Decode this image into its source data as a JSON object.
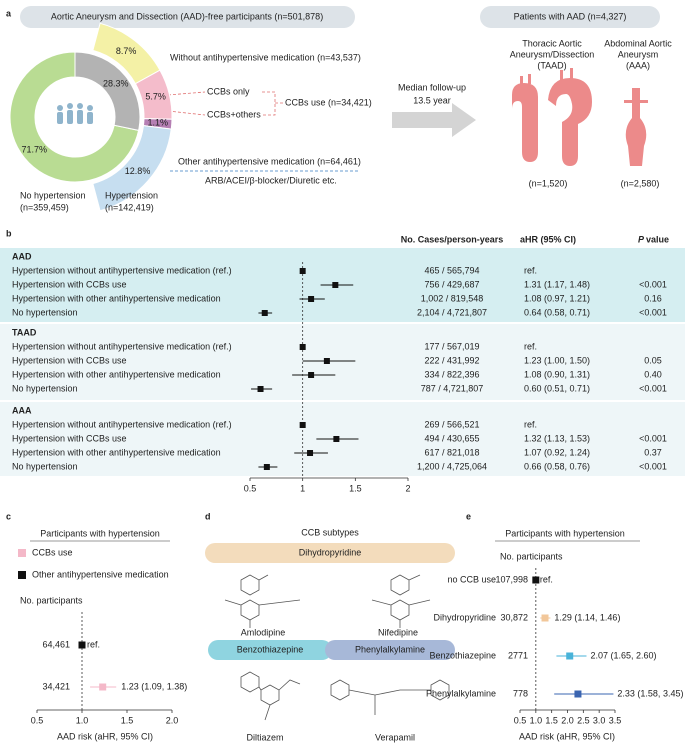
{
  "panel_a": {
    "label": "a",
    "header": "Aortic Aneurysm and Dissection (AAD)-free participants (n=501,878)",
    "donut_inner": {
      "values": [
        71.7,
        28.3
      ],
      "value_labels": [
        "71.7%",
        "28.3%"
      ],
      "colors": [
        "#b9dc93",
        "#b3b3b3"
      ]
    },
    "donut_outer": {
      "values": [
        8.7,
        5.7,
        1.1,
        12.8
      ],
      "value_labels": [
        "8.7%",
        "5.7%",
        "1.1%",
        "12.8%"
      ],
      "colors": [
        "#f4f1a6",
        "#f4bccb",
        "#b57fb3",
        "#c6def0"
      ]
    },
    "no_hypertension": "No hypertension",
    "no_hypertension_n": "(n=359,459)",
    "hypertension": "Hypertension",
    "hypertension_n": "(n=142,419)",
    "without_med": "Without antihypertensive medication (n=43,537)",
    "ccbs_only": "CCBs only",
    "ccbs_others": "CCBs+others",
    "ccbs_use": "CCBs use (n=34,421)",
    "other_med": "Other antihypertensive medication (n=64,461)",
    "other_med_detail": "ARB/ACEI/β-blocker/Diuretic etc.",
    "followup": [
      "Median follow-up",
      "13.5 year"
    ],
    "aad_header": "Patients with AAD (n=4,327)",
    "taad_title": [
      "Thoracic Aortic",
      "Aneurysm/Dissection",
      "(TAAD)"
    ],
    "taad_n": "(n=1,520)",
    "aaa_title": [
      "Abdominal Aortic",
      "Aneurysm",
      "(AAA)"
    ],
    "aaa_n": "(n=2,580)"
  },
  "panel_b": {
    "label": "b",
    "col_cases": "No. Cases/person-years",
    "col_hr": "aHR (95% CI)",
    "col_p_italic": "P",
    "col_p": "value",
    "xlim": [
      0.5,
      2
    ],
    "xticks": [
      0.5,
      1,
      1.5,
      2
    ],
    "ref_line": 1,
    "groups": [
      {
        "name": "AAD",
        "background": "#d5eef1",
        "rows": [
          {
            "label": "Hypertension without antihypertensive medication (ref.)",
            "cases": "465 / 565,794",
            "hr": 1,
            "hr_label": "ref."
          },
          {
            "label": "Hypertension with CCBs use",
            "cases": "756 / 429,687",
            "hr": 1.31,
            "lo": 1.17,
            "hi": 1.48,
            "hr_label": "1.31 (1.17, 1.48)",
            "p": "<0.001"
          },
          {
            "label": "Hypertension with other antihypertensive medication",
            "cases": "1,002 / 819,548",
            "hr": 1.08,
            "lo": 0.97,
            "hi": 1.21,
            "hr_label": "1.08 (0.97, 1.21)",
            "p": "0.16"
          },
          {
            "label": "No hypertension",
            "cases": "2,104 / 4,721,807",
            "hr": 0.64,
            "lo": 0.58,
            "hi": 0.71,
            "hr_label": "0.64 (0.58, 0.71)",
            "p": "<0.001"
          }
        ]
      },
      {
        "name": "TAAD",
        "background": "#eef6f8",
        "rows": [
          {
            "label": "Hypertension without antihypertensive medication (ref.)",
            "cases": "177 / 567,019",
            "hr": 1,
            "hr_label": "ref."
          },
          {
            "label": "Hypertension with CCBs use",
            "cases": "222 / 431,992",
            "hr": 1.23,
            "lo": 1.0,
            "hi": 1.5,
            "hr_label": "1.23 (1.00, 1.50)",
            "p": "0.05"
          },
          {
            "label": "Hypertension with other antihypertensive medication",
            "cases": "334 / 822,396",
            "hr": 1.08,
            "lo": 0.9,
            "hi": 1.31,
            "hr_label": "1.08 (0.90, 1.31)",
            "p": "0.40"
          },
          {
            "label": "No hypertension",
            "cases": "787 / 4,721,807",
            "hr": 0.6,
            "lo": 0.51,
            "hi": 0.71,
            "hr_label": "0.60 (0.51, 0.71)",
            "p": "<0.001"
          }
        ]
      },
      {
        "name": "AAA",
        "background": "#eef6f8",
        "rows": [
          {
            "label": "Hypertension without antihypertensive medication (ref.)",
            "cases": "269 / 566,521",
            "hr": 1,
            "hr_label": "ref."
          },
          {
            "label": "Hypertension with CCBs use",
            "cases": "494 / 430,655",
            "hr": 1.32,
            "lo": 1.13,
            "hi": 1.53,
            "hr_label": "1.32 (1.13, 1.53)",
            "p": "<0.001"
          },
          {
            "label": "Hypertension with other antihypertensive medication",
            "cases": "617 / 821,018",
            "hr": 1.07,
            "lo": 0.92,
            "hi": 1.24,
            "hr_label": "1.07 (0.92, 1.24)",
            "p": "0.37"
          },
          {
            "label": "No hypertension",
            "cases": "1,200 / 4,725,064",
            "hr": 0.66,
            "lo": 0.58,
            "hi": 0.76,
            "hr_label": "0.66 (0.58, 0.76)",
            "p": "<0.001"
          }
        ]
      }
    ]
  },
  "panel_c": {
    "label": "c",
    "title": "Participants with hypertension",
    "legend": [
      {
        "name": "CCBs use",
        "color": "#f4b8c8"
      },
      {
        "name": "Other antihypertensive medication",
        "color": "#111111"
      }
    ],
    "n_header": "No. participants",
    "rows": [
      {
        "n": "64,461",
        "hr": 1,
        "hr_label": "ref.",
        "color": "#111111"
      },
      {
        "n": "34,421",
        "hr": 1.23,
        "lo": 1.09,
        "hi": 1.38,
        "hr_label": "1.23 (1.09, 1.38)",
        "color": "#f4b8c8"
      }
    ],
    "xlim": [
      0.5,
      2.0
    ],
    "xticks": [
      0.5,
      {
        "value": 1,
        "label": "1.0"
      },
      1.5,
      {
        "value": 2,
        "label": "2.0"
      }
    ],
    "ref_line": 1,
    "xlabel": "AAD risk (aHR, 95% CI)"
  },
  "panel_d": {
    "label": "d",
    "title": "CCB subtypes",
    "dihydropyridine": "Dihydropyridine",
    "amlodipine": "Amlodipine",
    "nifedipine": "Nifedipine",
    "benzothiazepine": "Benzothiazepine",
    "phenylalkylamine": "Phenylalkylamine",
    "diltiazem": "Diltiazem",
    "verapamil": "Verapamil"
  },
  "panel_e": {
    "label": "e",
    "title": "Participants with hypertension",
    "n_header": "No. participants",
    "rows": [
      {
        "name": "no CCB use",
        "n": "107,998",
        "hr": 1,
        "hr_label": "ref.",
        "color": "#111111",
        "name_color": "#111111"
      },
      {
        "name": "Dihydropyridine",
        "n": "30,872",
        "hr": 1.29,
        "lo": 1.14,
        "hi": 1.46,
        "hr_label": "1.29 (1.14, 1.46)",
        "color": "#f2c79a",
        "name_color": "#e0502a"
      },
      {
        "name": "Benzothiazepine",
        "n": "2771",
        "hr": 2.07,
        "lo": 1.65,
        "hi": 2.6,
        "hr_label": "2.07 (1.65, 2.60)",
        "color": "#49b3d9",
        "name_color": "#3aa8d8"
      },
      {
        "name": "Phenylalkylamine",
        "n": "778",
        "hr": 2.33,
        "lo": 1.58,
        "hi": 3.45,
        "hr_label": "2.33 (1.58, 3.45)",
        "color": "#3a64b0",
        "name_color": "#2b5aa8"
      }
    ],
    "xlim": [
      0.5,
      3.5
    ],
    "xticks": [
      0.5,
      {
        "value": 1,
        "label": "1.0"
      },
      1.5,
      {
        "value": 2,
        "label": "2.0"
      },
      2.5,
      {
        "value": 3,
        "label": "3.0"
      },
      3.5
    ],
    "ref_line": 1,
    "xlabel": "AAD risk (aHR, 95% CI)"
  }
}
